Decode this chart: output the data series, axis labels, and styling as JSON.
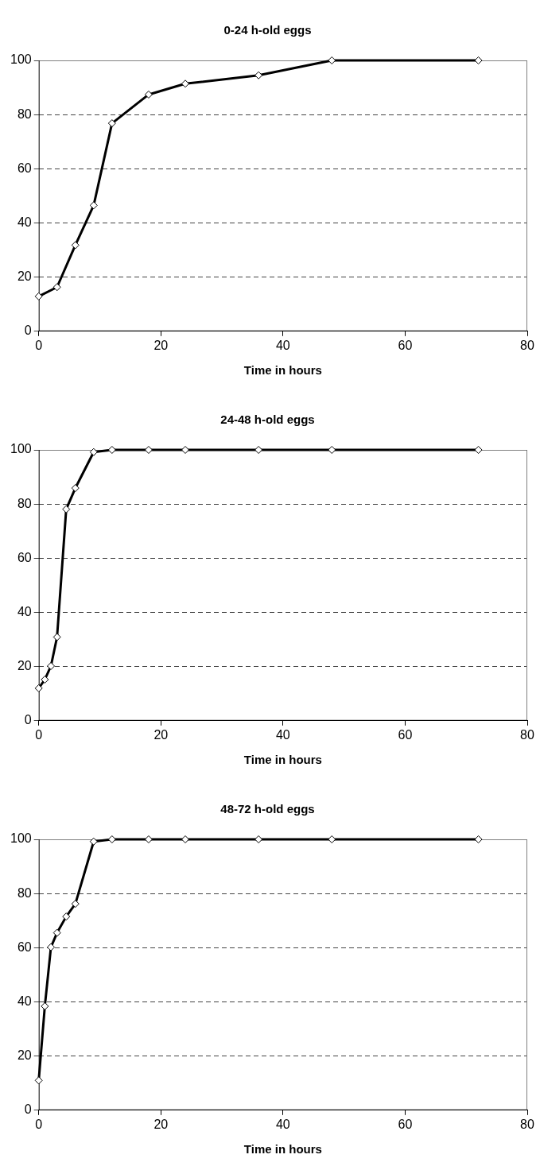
{
  "chart_data": [
    {
      "type": "line",
      "title": "0-24 h-old eggs",
      "xlabel": "Time in hours",
      "x": [
        0,
        3,
        6,
        9,
        12,
        18,
        24,
        36,
        48,
        72
      ],
      "series": [
        {
          "color": "#000000",
          "values": [
            12.9,
            16.3,
            31.8,
            46.5,
            76.8,
            87.4,
            91.4,
            94.5,
            100,
            100
          ]
        }
      ],
      "xlim": [
        0,
        80
      ],
      "xticks": [
        0,
        20,
        40,
        60,
        80
      ],
      "ylim": [
        0,
        100
      ],
      "yticks": [
        0,
        20,
        40,
        60,
        80,
        100
      ],
      "grid": "y",
      "marker": "diamond"
    },
    {
      "type": "line",
      "title": "24-48 h-old eggs",
      "xlabel": "Time in hours",
      "x": [
        0,
        1,
        2,
        3,
        4.5,
        6,
        9,
        12,
        18,
        24,
        36,
        48,
        72
      ],
      "series": [
        {
          "color": "#000000",
          "values": [
            12.0,
            15.2,
            20.2,
            30.9,
            78.1,
            85.9,
            99.2,
            100,
            100,
            100,
            100,
            100,
            100
          ]
        }
      ],
      "xlim": [
        0,
        80
      ],
      "xticks": [
        0,
        20,
        40,
        60,
        80
      ],
      "ylim": [
        0,
        100
      ],
      "yticks": [
        0,
        20,
        40,
        60,
        80,
        100
      ],
      "grid": "y",
      "marker": "diamond"
    },
    {
      "type": "line",
      "title": "48-72 h-old eggs",
      "xlabel": "Time in hours",
      "x": [
        0,
        1,
        2,
        3,
        4.5,
        6,
        9,
        12,
        18,
        24,
        36,
        48,
        72
      ],
      "series": [
        {
          "color": "#000000",
          "values": [
            11,
            38.4,
            60.2,
            65.5,
            71.5,
            76.2,
            99.2,
            100,
            100,
            100,
            100,
            100,
            100
          ]
        }
      ],
      "xlim": [
        0,
        80
      ],
      "xticks": [
        0,
        20,
        40,
        60,
        80
      ],
      "ylim": [
        0,
        100
      ],
      "yticks": [
        0,
        20,
        40,
        60,
        80,
        100
      ],
      "grid": "y",
      "marker": "diamond"
    }
  ]
}
